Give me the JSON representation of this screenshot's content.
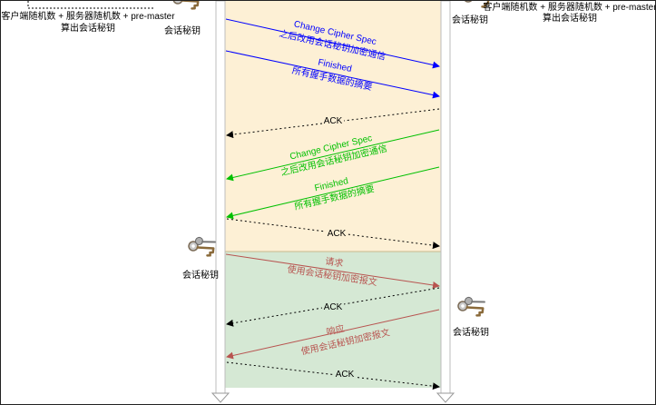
{
  "colors": {
    "handshake_bg": "#fdf0d5",
    "data_bg": "#d5e8d4",
    "lifeline": "#d0d0d0",
    "blue": "#0000ff",
    "green": "#00c000",
    "red": "#b85450",
    "black": "#000000"
  },
  "top": {
    "left_note_line1": "客户端随机数 + 服务器随机数 + pre-master",
    "left_note_line2": "算出会话秘钥",
    "left_key_label": "会话秘钥",
    "right_key_label": "会话秘钥",
    "right_note_line1": "客户端随机数 + 服务器随机数 + pre-master",
    "right_note_line2": "算出会话秘钥"
  },
  "handshake": {
    "client_ccs_title": "Change Cipher Spec",
    "client_ccs_sub": "之后改用会话秘钥加密通信",
    "client_fin_title": "Finished",
    "client_fin_sub": "所有握手数据的摘要",
    "ack1": "ACK",
    "server_ccs_title": "Change Cipher Spec",
    "server_ccs_sub": "之后改用会话秘钥加密通信",
    "server_fin_title": "Finished",
    "server_fin_sub": "所有握手数据的摘要",
    "ack2": "ACK"
  },
  "data": {
    "left_key_label": "会话秘钥",
    "request_title": "请求",
    "request_sub": "使用会话秘钥加密报文",
    "ack3": "ACK",
    "right_key_label": "会话秘钥",
    "response_title": "响应",
    "response_sub": "使用会话秘钥加密报文",
    "ack4": "ACK"
  }
}
